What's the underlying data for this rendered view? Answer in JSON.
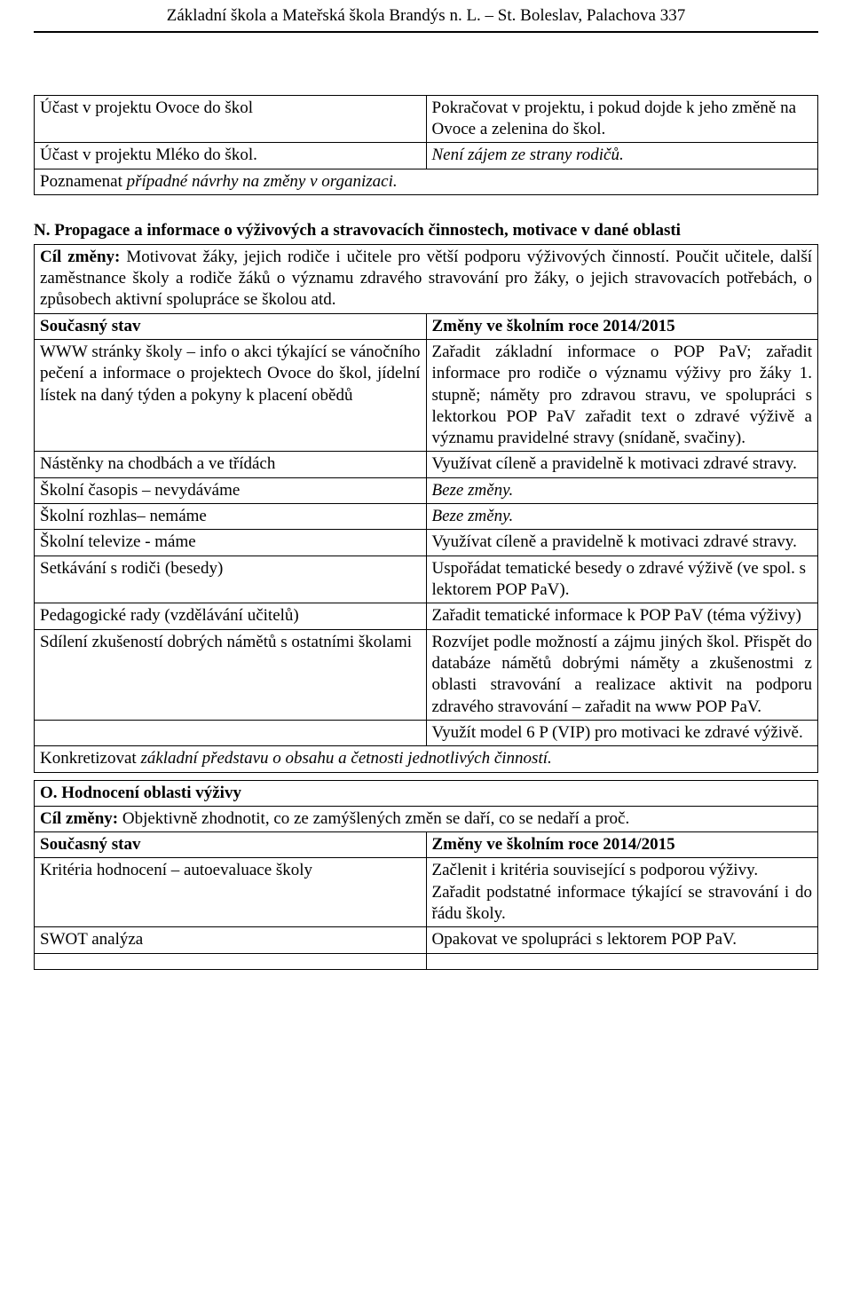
{
  "header": {
    "title": "Základní škola a Mateřská škola Brandýs n. L. – St. Boleslav, Palachova 337"
  },
  "table1": {
    "rows": [
      {
        "l": "Účast v projektu Ovoce do škol",
        "r": "Pokračovat v projektu, i pokud dojde k jeho změně na Ovoce a zelenina do škol."
      },
      {
        "l": "Účast v projektu Mléko do škol.",
        "r": "Není zájem ze strany rodičů.",
        "r_italic": true
      }
    ],
    "footer": "Poznamenat případné návrhy na změny v organizaci.",
    "footer_prefix": "Poznamenat ",
    "footer_rest": "případné návrhy na změny v organizaci."
  },
  "sectionN": {
    "heading": "N. Propagace a informace o výživových a stravovacích činnostech, motivace v dané oblasti",
    "goal_label": "Cíl změny:",
    "goal_text": " Motivovat žáky, jejich rodiče i učitele pro větší podporu výživových činností. Poučit učitele, další zaměstnance školy a rodiče žáků o významu zdravého stravování pro žáky, o jejich stravovacích potřebách, o způsobech aktivní spolupráce se školou atd.",
    "col_left": "Současný stav",
    "col_right": "Změny ve školním roce 2014/2015",
    "rows": [
      {
        "l": "WWW stránky školy – info o akci týkající se vánočního pečení a informace o projektech Ovoce do škol, jídelní lístek na daný týden a pokyny k placení obědů",
        "r": "Zařadit základní informace o POP PaV; zařadit informace pro rodiče o významu výživy pro žáky 1. stupně; náměty pro zdravou stravu, ve spolupráci s lektorkou POP PaV zařadit text o zdravé výživě a významu pravidelné stravy (snídaně, svačiny).",
        "r_justify": true
      },
      {
        "l": "Nástěnky na chodbách a ve třídách",
        "r": "Využívat cíleně a pravidelně k motivaci zdravé stravy.",
        "r_justify": true
      },
      {
        "l": "Školní časopis – nevydáváme",
        "r": "Beze změny.",
        "r_italic": true
      },
      {
        "l": "Školní rozhlas– nemáme",
        "r": "Beze změny.",
        "r_italic": true
      },
      {
        "l": "Školní televize - máme",
        "r": "Využívat cíleně a pravidelně k motivaci zdravé stravy."
      },
      {
        "l": "Setkávání s rodiči (besedy)",
        "r": "Uspořádat tematické besedy o zdravé výživě (ve spol. s lektorem POP PaV)."
      },
      {
        "l": "Pedagogické rady (vzdělávání učitelů)",
        "r": "Zařadit tematické informace k POP PaV (téma výživy)",
        "r_justify": true
      },
      {
        "l": "Sdílení zkušeností dobrých námětů s ostatními školami",
        "l_justify": true,
        "r": "Rozvíjet podle možností a zájmu jiných škol. Přispět do databáze námětů dobrými náměty a zkušenostmi z oblasti stravování a realizace aktivit na podporu zdravého stravování – zařadit na www POP PaV.",
        "r_justify": true
      },
      {
        "l": "",
        "r": "Využít model 6 P (VIP) pro motivaci ke zdravé výživě.",
        "r_justify": true
      }
    ],
    "footer_prefix": "Konkretizovat ",
    "footer_rest": "základní představu o obsahu a četnosti jednotlivých činností."
  },
  "sectionO": {
    "heading": "O. Hodnocení oblasti výživy",
    "goal_label": "Cíl změny:",
    "goal_text": " Objektivně zhodnotit, co ze zamýšlených změn se daří, co se nedaří a proč.",
    "col_left": "Současný stav",
    "col_right": "Změny ve školním roce 2014/2015",
    "rows": [
      {
        "l": "Kritéria hodnocení – autoevaluace školy",
        "r": "Začlenit i kritéria související s podporou výživy.\nZařadit podstatné informace týkající se stravování i do řádu školy.",
        "r_parts": [
          "Začlenit i kritéria související s podporou výživy.",
          "Zařadit podstatné informace týkající se stravování i do řádu školy."
        ]
      },
      {
        "l": "SWOT analýza",
        "r": "Opakovat ve spolupráci s lektorem POP PaV."
      }
    ]
  }
}
